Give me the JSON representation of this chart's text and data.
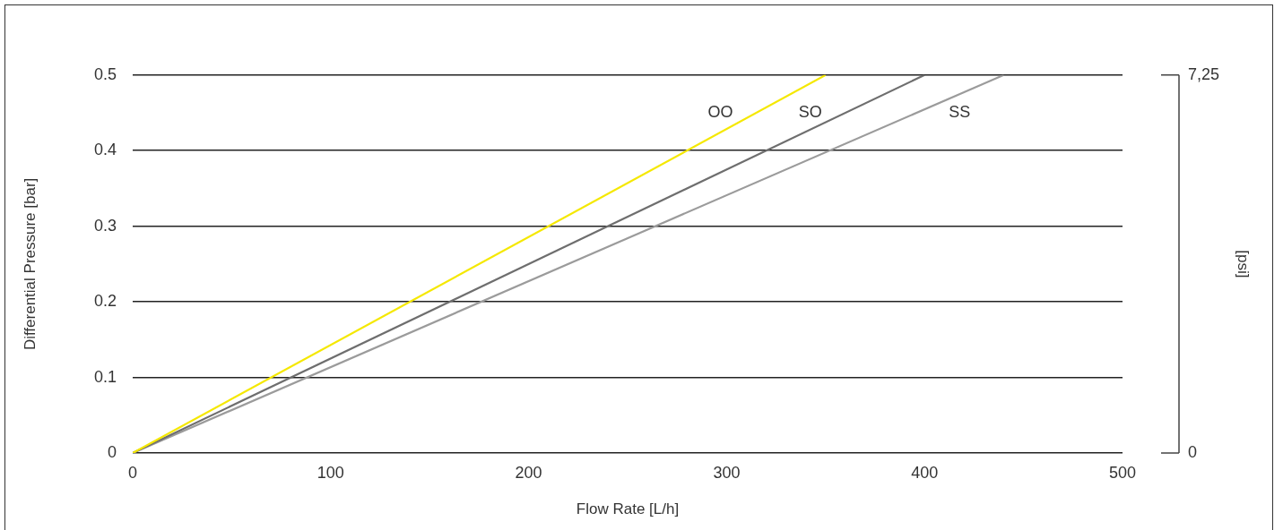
{
  "chart_data": {
    "type": "line",
    "xlabel": "Flow Rate [L/h]",
    "ylabel": "Differential Pressure [bar]",
    "y2label": "[psi]",
    "series": [
      {
        "name": "OO",
        "color": "#f5e800",
        "x": [
          0,
          350
        ],
        "values": [
          0,
          0.5
        ]
      },
      {
        "name": "SO",
        "color": "#6e6e6e",
        "x": [
          0,
          400
        ],
        "values": [
          0,
          0.5
        ]
      },
      {
        "name": "SS",
        "color": "#9b9b9b",
        "x": [
          0,
          440
        ],
        "values": [
          0,
          0.5
        ]
      }
    ],
    "xlim": [
      0,
      500
    ],
    "xticks": [
      0,
      100,
      200,
      300,
      400,
      500
    ],
    "ylim": [
      0,
      0.5
    ],
    "yticks": [
      0,
      0.1,
      0.2,
      0.3,
      0.4,
      0.5
    ],
    "y2lim": [
      0,
      7.25
    ],
    "y2ticks": [
      {
        "value": 0,
        "label": "0"
      },
      {
        "value": 7.25,
        "label": "7,25"
      }
    ],
    "grid": "y",
    "legend": false,
    "marker": "none",
    "line_style": "solid"
  }
}
